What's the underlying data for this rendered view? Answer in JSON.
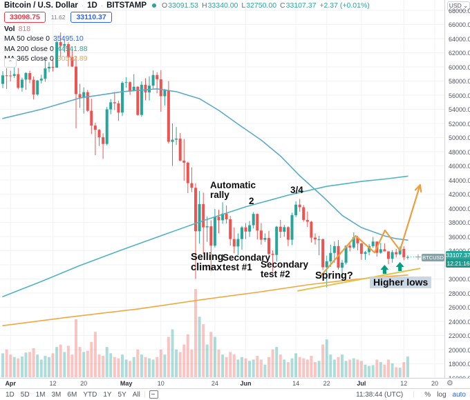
{
  "header": {
    "symbol_title": "Bitcoin / U.S. Dollar",
    "interval": "1D",
    "exchange": "BITSTAMP",
    "separator": "·",
    "ohlc": {
      "o_label": "O",
      "o": "33091.53",
      "h_label": "H",
      "h": "33340.00",
      "l_label": "L",
      "l": "32750.00",
      "c_label": "C",
      "c": "33107.37",
      "change": "+2.37 (+0.01%)"
    },
    "sell_price": "33098.75",
    "spread": "11.62",
    "buy_price": "33110.37"
  },
  "legend": {
    "vol_label": "Vol",
    "vol_value": "818",
    "ma50_label": "MA 50 close 0",
    "ma50_value": "35495.10",
    "ma200_label": "MA 200 close 0",
    "ma200_value": "44541.88",
    "ma365_label": "MA 365 close 0",
    "ma365_value": "30552.89",
    "collapse_glyph": "⌃"
  },
  "annotations": {
    "automatic_rally": "Automatic rally",
    "two": "2",
    "three_four": "3/4",
    "selling_climax": "Selling climax",
    "secondary_test_1": "Secondary test #1",
    "secondary_test_2": "Secondary test #2",
    "spring": "Spring?",
    "higher_lows": "Higher lows"
  },
  "price_axis": {
    "currency_label": "USD",
    "min": 16000,
    "max": 68000,
    "step": 2000,
    "current_price": "33107.37",
    "countdown": "12:21:16",
    "symbol_tag": "BTCUSD"
  },
  "time_axis": {
    "labels": [
      {
        "text": "Apr",
        "day": 2,
        "bold": true
      },
      {
        "text": "12",
        "day": 13,
        "bold": false
      },
      {
        "text": "20",
        "day": 21,
        "bold": false
      },
      {
        "text": "May",
        "day": 32,
        "bold": true
      },
      {
        "text": "10",
        "day": 41,
        "bold": false
      },
      {
        "text": "24",
        "day": 55,
        "bold": false
      },
      {
        "text": "Jun",
        "day": 63,
        "bold": true
      },
      {
        "text": "14",
        "day": 76,
        "bold": false
      },
      {
        "text": "22",
        "day": 84,
        "bold": false
      },
      {
        "text": "Jul",
        "day": 93,
        "bold": true
      },
      {
        "text": "12",
        "day": 104,
        "bold": false
      },
      {
        "text": "20",
        "day": 112,
        "bold": false
      }
    ]
  },
  "toolbar": {
    "ranges": [
      "1D",
      "5D",
      "1M",
      "3M",
      "6M",
      "YTD",
      "1Y",
      "5Y",
      "All"
    ],
    "clock": "11:38:44 (UTC)",
    "percent_label": "%",
    "log_label": "log",
    "auto_label": "auto"
  },
  "colors": {
    "up": "#26a69a",
    "down": "#ef5350",
    "vol_up": "rgba(38,166,154,0.38)",
    "vol_down": "rgba(239,83,80,0.34)",
    "ma50": "#5aa9c9",
    "ma200": "#4fb3c0",
    "ma365": "#f2a73d",
    "drawing": "#ee9d3e",
    "trendline": "#e3c14d",
    "arrow_marker": "#089981",
    "grid": "#f0f2f6",
    "axis_text": "#50535e",
    "badge": "#26a69a",
    "tag": "#87a1a5",
    "sell": "#f23645",
    "buy": "#2962ff",
    "vol_value_text": "#c77d7d"
  },
  "chart_data": {
    "type": "candlestick",
    "title": "Bitcoin / U.S. Dollar 1D BITSTAMP",
    "symbol": "BTCUSD",
    "interval": "1D",
    "start_date": "2021-03-30",
    "ylim": [
      16000,
      68000
    ],
    "grid": true,
    "candles": [
      [
        57600,
        59400,
        57000,
        58800
      ],
      [
        58800,
        59800,
        56900,
        58780
      ],
      [
        58780,
        59470,
        57940,
        58730
      ],
      [
        58730,
        60000,
        58450,
        58980
      ],
      [
        58980,
        59850,
        56830,
        57050
      ],
      [
        57050,
        58500,
        56500,
        58200
      ],
      [
        58200,
        59250,
        56750,
        59120
      ],
      [
        59120,
        59450,
        57700,
        58190
      ],
      [
        58190,
        58650,
        55400,
        56100
      ],
      [
        56100,
        58150,
        55900,
        58080
      ],
      [
        58080,
        58900,
        57680,
        58330
      ],
      [
        58330,
        61200,
        57900,
        59790
      ],
      [
        59790,
        60650,
        59250,
        60000
      ],
      [
        60000,
        61150,
        59350,
        59890
      ],
      [
        59890,
        63740,
        59870,
        63500
      ],
      [
        63500,
        64860,
        61300,
        62980
      ],
      [
        62980,
        63800,
        62050,
        63220
      ],
      [
        63220,
        63500,
        60050,
        61390
      ],
      [
        61390,
        62550,
        60000,
        60050
      ],
      [
        60050,
        61500,
        51300,
        56150
      ],
      [
        56150,
        57600,
        54200,
        55650
      ],
      [
        55650,
        57100,
        53400,
        56430
      ],
      [
        56430,
        56750,
        53650,
        53800
      ],
      [
        53800,
        55500,
        50500,
        51700
      ],
      [
        51700,
        52120,
        47500,
        51100
      ],
      [
        51100,
        51200,
        48800,
        50050
      ],
      [
        50050,
        50600,
        47000,
        49100
      ],
      [
        49100,
        54350,
        48900,
        54000
      ],
      [
        54000,
        55450,
        53300,
        55000
      ],
      [
        55000,
        56450,
        53900,
        54850
      ],
      [
        54850,
        55200,
        52350,
        53550
      ],
      [
        53550,
        57950,
        53050,
        57750
      ],
      [
        57750,
        58550,
        57050,
        57830
      ],
      [
        57830,
        57950,
        56050,
        56600
      ],
      [
        56600,
        58980,
        56550,
        57200
      ],
      [
        57200,
        57250,
        53100,
        53200
      ],
      [
        53200,
        57950,
        52950,
        57470
      ],
      [
        57470,
        58400,
        55300,
        56400
      ],
      [
        56400,
        58650,
        55250,
        57350
      ],
      [
        57350,
        59500,
        56950,
        58850
      ],
      [
        58850,
        59250,
        56250,
        58250
      ],
      [
        58250,
        59550,
        53650,
        55850
      ],
      [
        55850,
        56900,
        54550,
        56700
      ],
      [
        56700,
        58000,
        49150,
        49400
      ],
      [
        49400,
        52000,
        46000,
        49700
      ],
      [
        49700,
        51500,
        48950,
        49850
      ],
      [
        49850,
        50650,
        46650,
        46750
      ],
      [
        46750,
        49800,
        43900,
        46450
      ],
      [
        46450,
        46600,
        42150,
        43550
      ],
      [
        43550,
        45800,
        42300,
        42900
      ],
      [
        42900,
        43550,
        30000,
        36750
      ],
      [
        36750,
        42450,
        35000,
        40600
      ],
      [
        40600,
        42200,
        33550,
        37300
      ],
      [
        37300,
        38850,
        35250,
        37450
      ],
      [
        37450,
        38300,
        31100,
        34700
      ],
      [
        34700,
        39900,
        34450,
        38800
      ],
      [
        38800,
        39800,
        36450,
        38300
      ],
      [
        38300,
        40850,
        37800,
        39250
      ],
      [
        39250,
        40400,
        37850,
        38440
      ],
      [
        38440,
        38900,
        34700,
        35650
      ],
      [
        35650,
        37300,
        33650,
        34600
      ],
      [
        34600,
        36450,
        33350,
        35650
      ],
      [
        35650,
        37500,
        34150,
        37300
      ],
      [
        37300,
        37900,
        35650,
        36700
      ],
      [
        36700,
        38200,
        35950,
        37600
      ],
      [
        37600,
        39450,
        37150,
        39200
      ],
      [
        39200,
        39250,
        35600,
        36850
      ],
      [
        36850,
        37900,
        34850,
        35550
      ],
      [
        35550,
        36450,
        35250,
        35800
      ],
      [
        35800,
        36800,
        33350,
        33550
      ],
      [
        33550,
        34050,
        31050,
        33400
      ],
      [
        33400,
        37500,
        32450,
        37400
      ],
      [
        37400,
        38350,
        35800,
        36680
      ],
      [
        36680,
        37650,
        35950,
        37330
      ],
      [
        37330,
        37450,
        34650,
        35550
      ],
      [
        35550,
        39380,
        34800,
        39020
      ],
      [
        39020,
        41000,
        38750,
        40520
      ],
      [
        40520,
        41330,
        39500,
        40150
      ],
      [
        40150,
        40450,
        38100,
        38350
      ],
      [
        38350,
        39550,
        37365,
        38100
      ],
      [
        38100,
        38200,
        35150,
        35850
      ],
      [
        35850,
        36450,
        34850,
        35600
      ],
      [
        35600,
        36100,
        33350,
        35615
      ],
      [
        35615,
        35750,
        31250,
        31650
      ],
      [
        31650,
        33300,
        28800,
        32500
      ],
      [
        32500,
        34850,
        31700,
        33680
      ],
      [
        33680,
        35300,
        32300,
        34650
      ],
      [
        34650,
        35500,
        31350,
        31600
      ],
      [
        31600,
        32700,
        30150,
        32300
      ],
      [
        32300,
        34750,
        32050,
        34700
      ],
      [
        34700,
        35300,
        33900,
        34450
      ],
      [
        34450,
        36600,
        34250,
        35900
      ],
      [
        35900,
        36100,
        34050,
        35040
      ],
      [
        35040,
        35050,
        32700,
        33550
      ],
      [
        33550,
        33950,
        32700,
        33800
      ],
      [
        33800,
        34950,
        33350,
        34650
      ],
      [
        34650,
        35950,
        34400,
        35300
      ],
      [
        35300,
        35300,
        33150,
        33700
      ],
      [
        33700,
        35100,
        33550,
        34200
      ],
      [
        34200,
        35050,
        33900,
        33900
      ],
      [
        33900,
        33930,
        32100,
        32850
      ],
      [
        32850,
        34100,
        32300,
        33800
      ],
      [
        33800,
        34250,
        33050,
        33500
      ],
      [
        33500,
        34600,
        33350,
        34250
      ],
      [
        34250,
        34650,
        32650,
        33080
      ],
      [
        33091,
        33340,
        32750,
        33107
      ]
    ],
    "volume": [
      950,
      1100,
      900,
      800,
      750,
      820,
      980,
      1000,
      1150,
      900,
      700,
      850,
      800,
      950,
      1200,
      1300,
      1000,
      1250,
      900,
      2300,
      1200,
      1000,
      1050,
      1400,
      1800,
      900,
      850,
      1200,
      950,
      800,
      750,
      900,
      700,
      650,
      800,
      1100,
      900,
      800,
      750,
      700,
      800,
      1100,
      900,
      1600,
      1900,
      1100,
      1000,
      1300,
      1700,
      1100,
      3500,
      2400,
      2100,
      1300,
      1800,
      1600,
      1100,
      900,
      800,
      1000,
      900,
      700,
      800,
      750,
      650,
      700,
      850,
      700,
      500,
      800,
      1100,
      1200,
      900,
      700,
      600,
      750,
      950,
      800,
      750,
      700,
      850,
      600,
      650,
      1300,
      1500,
      900,
      700,
      800,
      900,
      650,
      700,
      750,
      700,
      650,
      500,
      450,
      480,
      700,
      600,
      500,
      700,
      550,
      400,
      380,
      600,
      818
    ],
    "overlays": [
      {
        "name": "ma50-line",
        "value": 35495.1,
        "points": [
          [
            0,
            52700
          ],
          [
            10,
            54000
          ],
          [
            20,
            55600
          ],
          [
            31,
            56500
          ],
          [
            40,
            56900
          ],
          [
            45,
            56500
          ],
          [
            51,
            55500
          ],
          [
            56,
            53850
          ],
          [
            61,
            51900
          ],
          [
            67,
            49650
          ],
          [
            72,
            47400
          ],
          [
            77,
            44600
          ],
          [
            83,
            41650
          ],
          [
            88,
            39000
          ],
          [
            93,
            37270
          ],
          [
            99,
            36100
          ],
          [
            102,
            35700
          ],
          [
            105,
            35495
          ]
        ]
      },
      {
        "name": "ma200-line",
        "value": 44541.88,
        "points": [
          [
            0,
            27500
          ],
          [
            10,
            29650
          ],
          [
            20,
            31900
          ],
          [
            31,
            34150
          ],
          [
            42,
            36300
          ],
          [
            52,
            38250
          ],
          [
            63,
            40200
          ],
          [
            74,
            41850
          ],
          [
            84,
            43100
          ],
          [
            93,
            43800
          ],
          [
            100,
            44200
          ],
          [
            105,
            44542
          ]
        ]
      },
      {
        "name": "ma365-line",
        "value": 30552.89,
        "points": [
          [
            0,
            23400
          ],
          [
            17,
            24600
          ],
          [
            35,
            25750
          ],
          [
            52,
            27100
          ],
          [
            67,
            28200
          ],
          [
            79,
            29170
          ],
          [
            88,
            29750
          ],
          [
            97,
            30250
          ],
          [
            105,
            30553
          ]
        ]
      }
    ],
    "drawings": {
      "zigzag_points": [
        [
          82.4,
          30400
        ],
        [
          91.5,
          36100
        ],
        [
          96.4,
          33750
        ],
        [
          99.1,
          36880
        ],
        [
          103,
          34050
        ],
        [
          108.2,
          43300
        ]
      ],
      "trendline_points": [
        [
          76.4,
          28300
        ],
        [
          108.3,
          31500
        ]
      ],
      "arrow_markers": [
        [
          99,
          31990
        ],
        [
          103,
          32390
        ]
      ],
      "last_price": 33107.37
    }
  }
}
